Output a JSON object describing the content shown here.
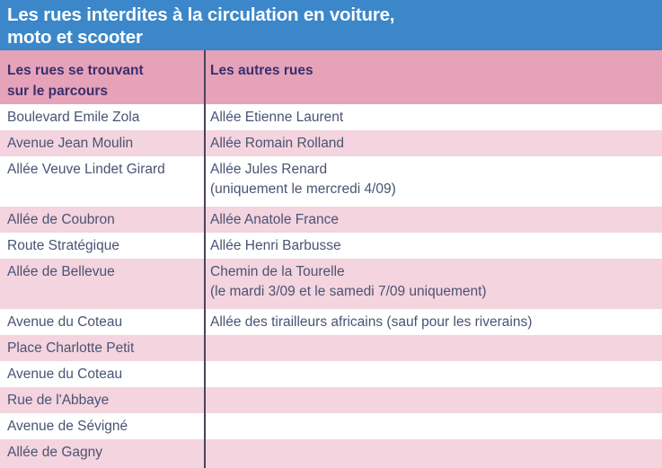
{
  "title": {
    "text": "Les rues interdites à la circulation en voiture,\nmoto et scooter"
  },
  "colors": {
    "title_band_blue": "#3b87c9",
    "title_text": "#ffffff",
    "header_row_pink": "#e5a2b9",
    "header_text_purple": "#392f6b",
    "row_pink": "#f4d4de",
    "row_white": "#ffffff",
    "body_text": "#4a5374",
    "column_divider": "#4a4458"
  },
  "table": {
    "headers": [
      "Les rues se trouvant\nsur le parcours",
      "Les autres rues"
    ],
    "rows": [
      {
        "left": "Boulevard Emile Zola",
        "right": "Allée Etienne Laurent"
      },
      {
        "left": "Avenue Jean Moulin",
        "right": "Allée Romain Rolland"
      },
      {
        "left": "Allée Veuve Lindet Girard",
        "right": "Allée Jules Renard\n(uniquement le mercredi 4/09)"
      },
      {
        "left": "Allée de Coubron",
        "right": "Allée Anatole France"
      },
      {
        "left": "Route Stratégique",
        "right": "Allée Henri Barbusse"
      },
      {
        "left": "Allée de Bellevue",
        "right": "Chemin de la Tourelle\n(le mardi 3/09 et le samedi 7/09 uniquement)"
      },
      {
        "left": "Avenue du Coteau",
        "right": "Allée des tirailleurs africains (sauf pour les riverains)"
      },
      {
        "left": "Place Charlotte Petit",
        "right": ""
      },
      {
        "left": "Avenue du Coteau",
        "right": ""
      },
      {
        "left": "Rue de l'Abbaye",
        "right": ""
      },
      {
        "left": "Avenue de Sévigné",
        "right": ""
      },
      {
        "left": "Allée de Gagny",
        "right": ""
      }
    ]
  }
}
